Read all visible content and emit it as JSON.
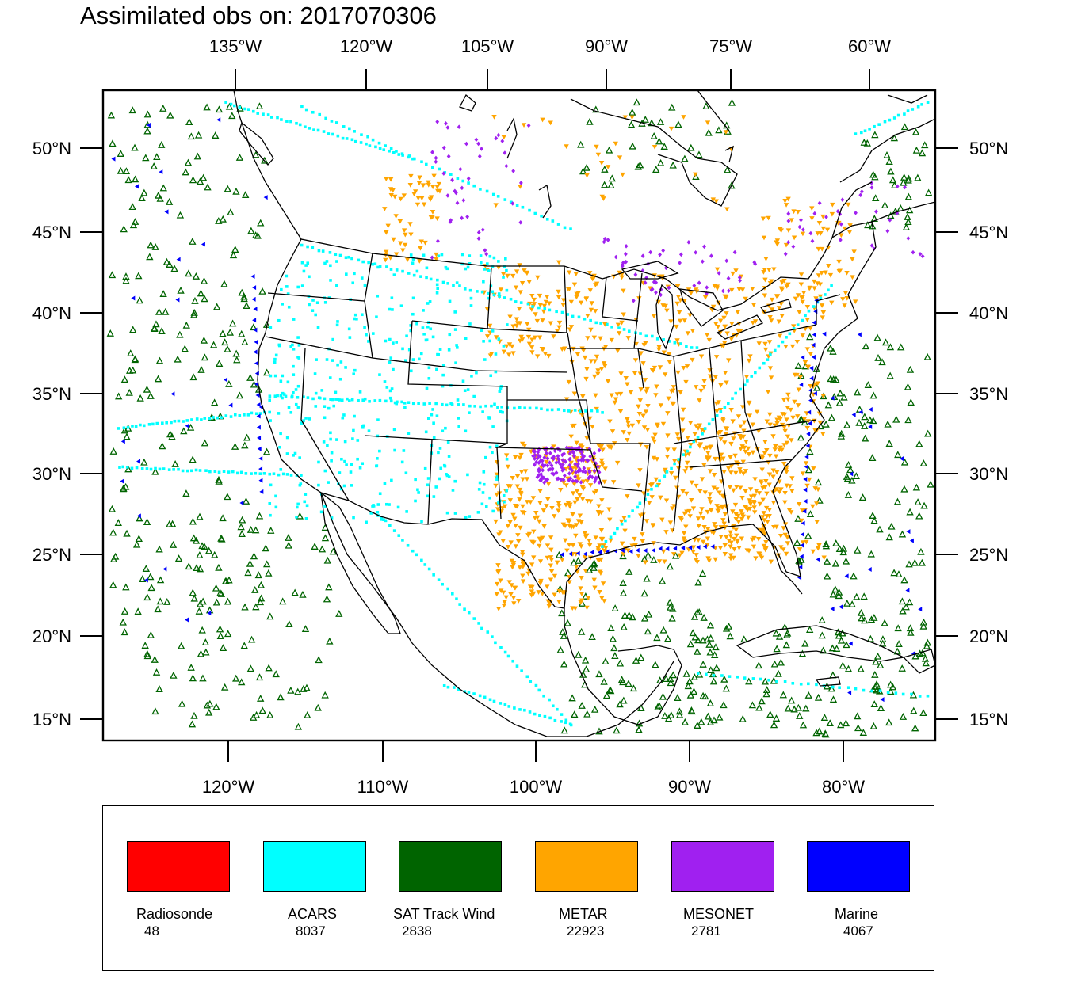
{
  "title": "Assimilated obs on: 2017070306",
  "map": {
    "top_axis_labels": [
      "135°W",
      "120°W",
      "105°W",
      "90°W",
      "75°W",
      "60°W"
    ],
    "bottom_axis_labels": [
      "120°W",
      "110°W",
      "100°W",
      "90°W",
      "80°W"
    ],
    "lat_labels": [
      "50°N",
      "45°N",
      "40°N",
      "35°N",
      "30°N",
      "25°N",
      "20°N",
      "15°N"
    ]
  },
  "legend": [
    {
      "name": "Radiosonde",
      "count": "48",
      "color": "#ff0000",
      "symbol": "circle"
    },
    {
      "name": "ACARS",
      "count": "8037",
      "color": "#00ffff",
      "symbol": "square"
    },
    {
      "name": "SAT Track Wind",
      "count": "2838",
      "color": "#006400",
      "symbol": "triangle-up"
    },
    {
      "name": "METAR",
      "count": "22923",
      "color": "#ffa500",
      "symbol": "triangle-down"
    },
    {
      "name": "MESONET",
      "count": "2781",
      "color": "#a020f0",
      "symbol": "diamond"
    },
    {
      "name": "Marine",
      "count": "4067",
      "color": "#0000ff",
      "symbol": "triangle-left"
    }
  ]
}
